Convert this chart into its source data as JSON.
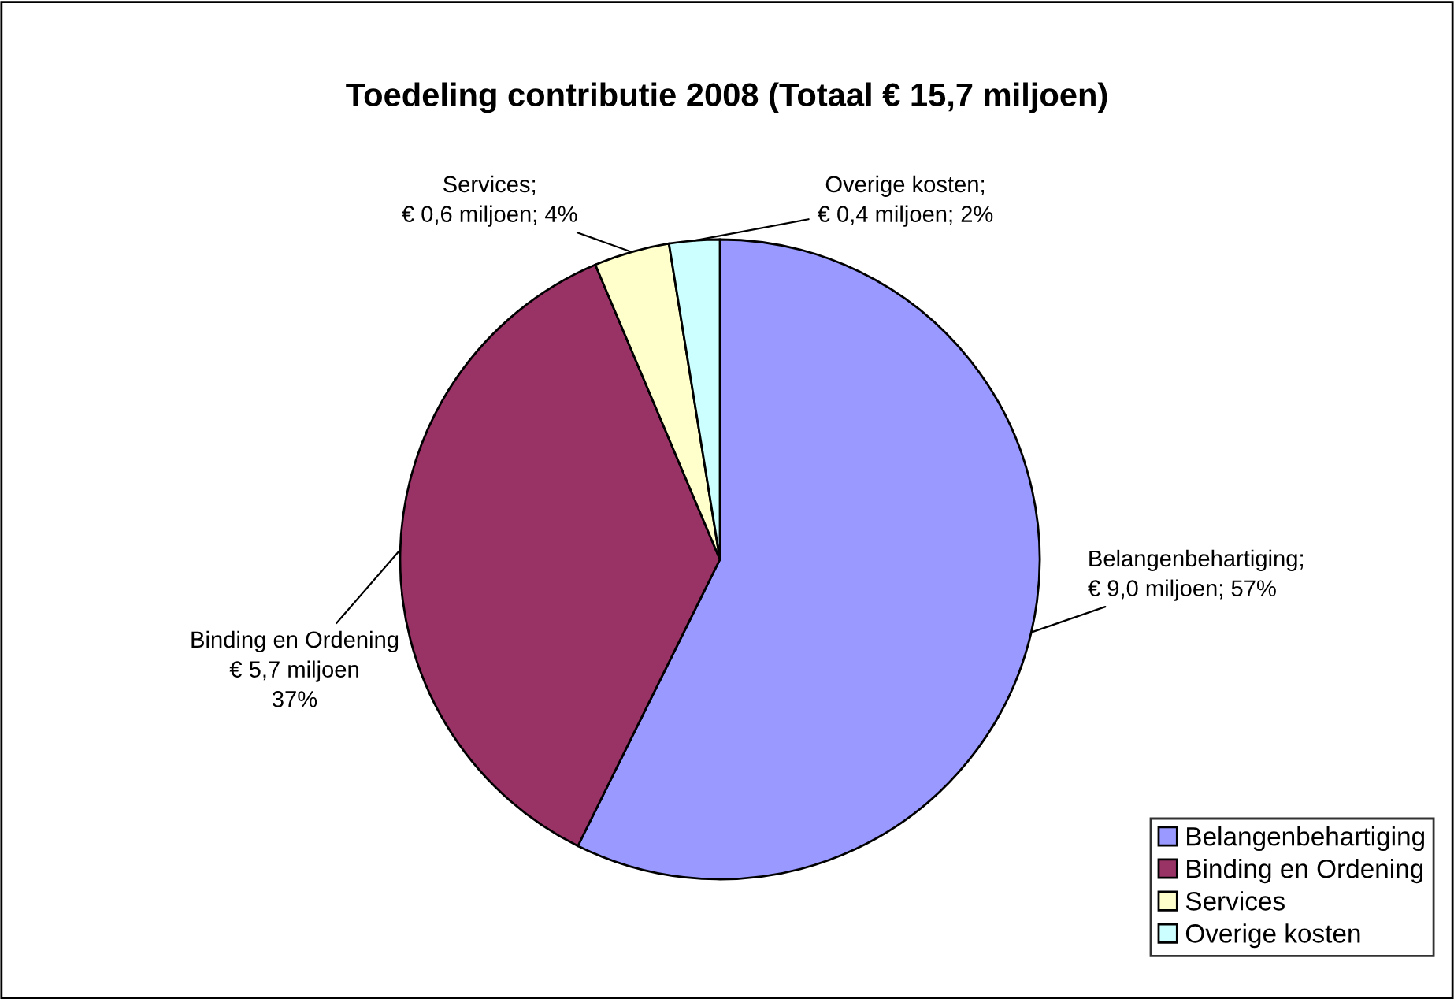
{
  "chart_data": {
    "type": "pie",
    "title": "Toedeling contributie 2008 (Totaal € 15,7 miljoen)",
    "categories": [
      "Belangenbehartiging",
      "Binding en Ordening",
      "Services",
      "Overige kosten"
    ],
    "values": [
      9.0,
      5.7,
      0.6,
      0.4
    ],
    "colors": [
      "#9999ff",
      "#993366",
      "#ffffcc",
      "#ccffff"
    ],
    "value_labels": [
      "Belangenbehartiging;\n€ 9,0 miljoen; 57%",
      "Binding en Ordening\n€ 5,7 miljoen\n37%",
      "Services;\n€ 0,6 miljoen; 4%",
      "Overige kosten;\n€ 0,4 miljoen; 2%"
    ],
    "legend": "bottom right"
  }
}
